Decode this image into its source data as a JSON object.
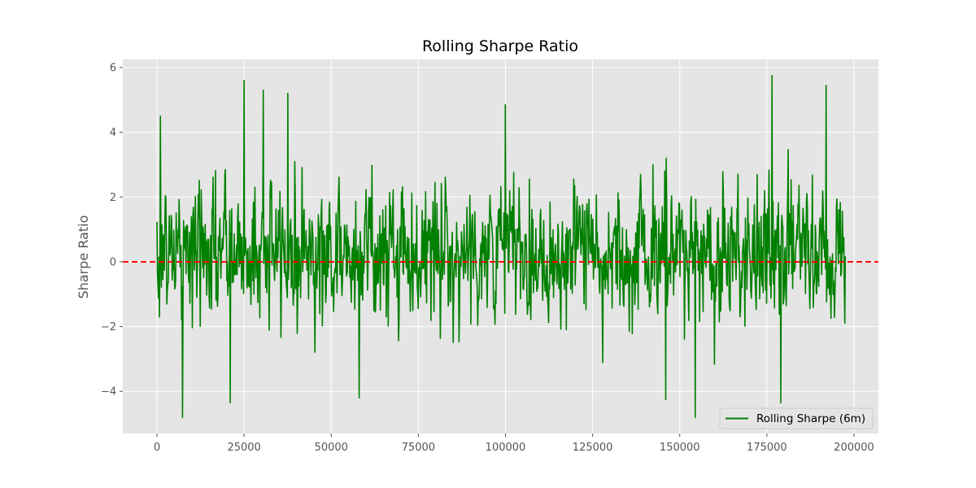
{
  "chart_data": {
    "type": "line",
    "title": "Rolling Sharpe Ratio",
    "xlabel": "",
    "ylabel": "Sharpe Ratio",
    "xlim": [
      -9800,
      207000
    ],
    "ylim": [
      -5.3,
      6.25
    ],
    "x_ticks": [
      0,
      25000,
      50000,
      75000,
      100000,
      125000,
      150000,
      175000,
      200000
    ],
    "y_ticks": [
      -4,
      -2,
      0,
      2,
      4,
      6
    ],
    "y_tick_labels": [
      "−4",
      "−2",
      "0",
      "2",
      "4",
      "6"
    ],
    "grid": true,
    "legend_position": "lower-right",
    "series": [
      {
        "name": "Rolling Sharpe (6m)",
        "color": "#008000",
        "x_range": [
          0,
          197500
        ],
        "points_estimated": 1400,
        "y_center": 0.3,
        "y_typical_range": [
          -3.5,
          4.2
        ],
        "y_max_observed": 5.75,
        "y_min_observed": -4.8,
        "peaks": [
          [
            1000,
            4.5
          ],
          [
            25000,
            5.6
          ],
          [
            30500,
            5.3
          ],
          [
            37500,
            5.2
          ],
          [
            100000,
            4.85
          ],
          [
            176500,
            5.75
          ],
          [
            192000,
            5.45
          ]
        ],
        "troughs": [
          [
            7300,
            -4.8
          ],
          [
            21000,
            -4.35
          ],
          [
            58000,
            -4.2
          ],
          [
            146000,
            -4.25
          ],
          [
            154500,
            -4.8
          ],
          [
            179000,
            -4.35
          ]
        ]
      }
    ],
    "reference_lines": [
      {
        "type": "horizontal",
        "y": 0,
        "color": "#ff0000",
        "style": "dashed"
      }
    ]
  },
  "colors": {
    "plot_background": "#e5e5e5",
    "grid": "#ffffff",
    "series": "#008000",
    "zero_line": "#ff0000"
  }
}
